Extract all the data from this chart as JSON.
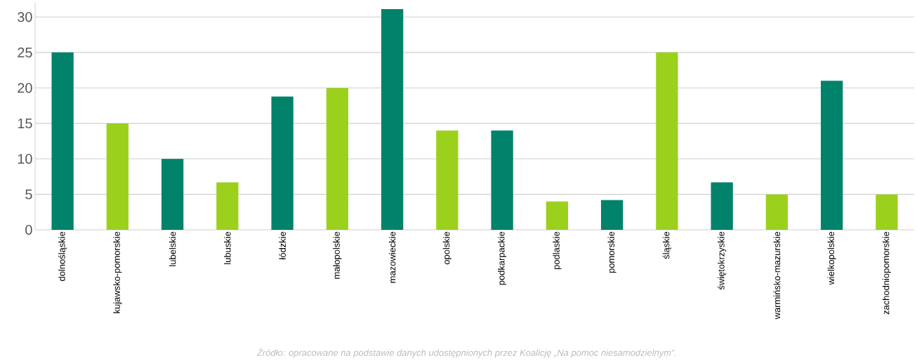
{
  "chart_data": {
    "type": "bar",
    "categories": [
      "dolnośląskie",
      "kujawsko-pomorskie",
      "lubelskie",
      "lubuskie",
      "łódzkie",
      "małopolskie",
      "mazowieckie",
      "opolskie",
      "podkarpackie",
      "podlaskie",
      "pomorskie",
      "śląskie",
      "świętokrzyskie",
      "warmińsko-mazurskie",
      "wielkopolskie",
      "zachodniopomorskie"
    ],
    "values": [
      25,
      15,
      10,
      6.7,
      18.8,
      20,
      31.1,
      14,
      14,
      4,
      4.2,
      25,
      6.7,
      5,
      21,
      5
    ],
    "colors": [
      "#00826b",
      "#9bd11c",
      "#00826b",
      "#9bd11c",
      "#00826b",
      "#9bd11c",
      "#00826b",
      "#9bd11c",
      "#00826b",
      "#9bd11c",
      "#00826b",
      "#9bd11c",
      "#00826b",
      "#9bd11c",
      "#00826b",
      "#9bd11c"
    ],
    "ylim": [
      0,
      32
    ],
    "yticks": [
      0,
      5,
      10,
      15,
      20,
      25,
      30
    ],
    "grid": "y",
    "annotations": [
      "Źródło: opracowane na podstawie danych udostępnionych przez Koalicję „Na pomoc niesamodzielnym”."
    ]
  }
}
